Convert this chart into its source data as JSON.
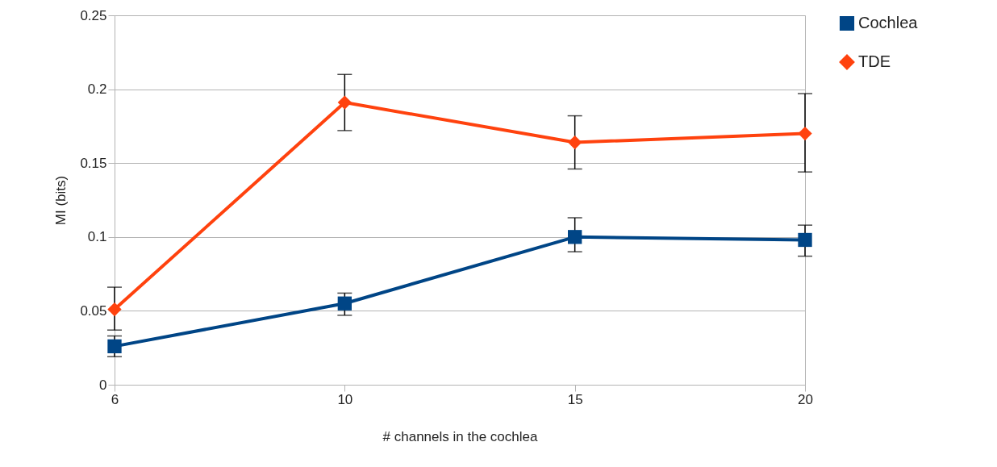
{
  "chart_data": {
    "type": "line",
    "xlabel": "# channels in the cochlea",
    "ylabel": "MI (bits)",
    "categories": [
      "6",
      "10",
      "15",
      "20"
    ],
    "series": [
      {
        "name": "Cochlea",
        "color": "#004586",
        "marker": "square",
        "values": [
          0.026,
          0.055,
          0.1,
          0.098
        ],
        "errors": [
          [
            0.019,
            0.033
          ],
          [
            0.047,
            0.062
          ],
          [
            0.09,
            0.113
          ],
          [
            0.087,
            0.108
          ]
        ]
      },
      {
        "name": "TDE",
        "color": "#ff420e",
        "marker": "diamond",
        "values": [
          0.051,
          0.191,
          0.164,
          0.17
        ],
        "errors": [
          [
            0.037,
            0.066
          ],
          [
            0.172,
            0.21
          ],
          [
            0.146,
            0.182
          ],
          [
            0.144,
            0.197
          ]
        ]
      }
    ],
    "ylim": [
      0,
      0.25
    ],
    "yticks": [
      {
        "value": 0,
        "label": "0"
      },
      0.05,
      {
        "value": 0.1,
        "label": "0.1"
      },
      0.15,
      {
        "value": 0.2,
        "label": "0.2"
      },
      0.25
    ],
    "grid": "y",
    "legend": "right"
  }
}
